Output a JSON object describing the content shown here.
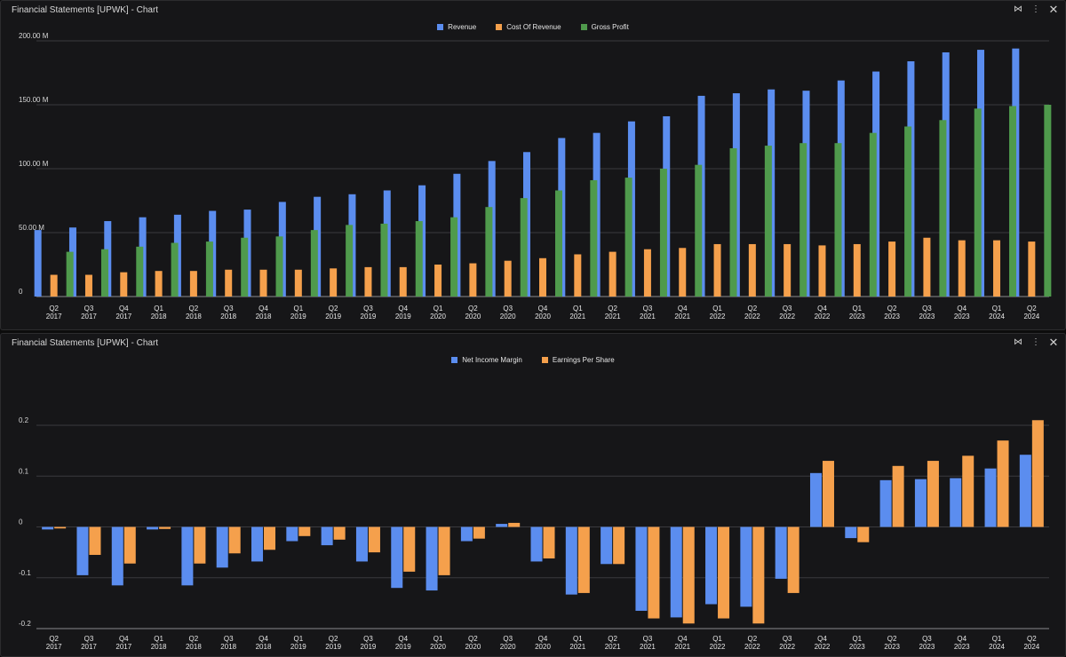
{
  "colors": {
    "revenue": "#5b8def",
    "cost": "#f5a04c",
    "gross": "#4f9a4c",
    "nim": "#5b8def",
    "eps": "#f5a04c"
  },
  "icons": {
    "collapse": "collapse-arrows-icon",
    "menu": "kebab-menu-icon",
    "close": "close-x-icon"
  },
  "panels": [
    {
      "title": "Financial Statements [UPWK] - Chart",
      "legend": [
        "Revenue",
        "Cost Of Revenue",
        "Gross Profit"
      ]
    },
    {
      "title": "Financial Statements [UPWK] - Chart",
      "legend": [
        "Net Income Margin",
        "Earnings Per Share"
      ]
    }
  ],
  "chart_data": [
    {
      "type": "bar",
      "categories": [
        "Q2 2017",
        "Q3 2017",
        "Q4 2017",
        "Q1 2018",
        "Q2 2018",
        "Q3 2018",
        "Q4 2018",
        "Q1 2019",
        "Q2 2019",
        "Q3 2019",
        "Q4 2019",
        "Q1 2020",
        "Q2 2020",
        "Q3 2020",
        "Q4 2020",
        "Q1 2021",
        "Q2 2021",
        "Q3 2021",
        "Q4 2021",
        "Q1 2022",
        "Q2 2022",
        "Q3 2022",
        "Q4 2022",
        "Q1 2023",
        "Q2 2023",
        "Q3 2023",
        "Q4 2023",
        "Q1 2024",
        "Q2 2024"
      ],
      "series": [
        {
          "name": "Revenue",
          "values": [
            52,
            54,
            59,
            62,
            64,
            67,
            68,
            74,
            78,
            80,
            83,
            87,
            96,
            106,
            113,
            124,
            128,
            137,
            141,
            157,
            159,
            162,
            161,
            169,
            176,
            184,
            191,
            193,
            194
          ]
        },
        {
          "name": "Cost Of Revenue",
          "values": [
            17,
            17,
            19,
            20,
            20,
            21,
            21,
            21,
            22,
            23,
            23,
            25,
            26,
            28,
            30,
            33,
            35,
            37,
            38,
            41,
            41,
            41,
            40,
            41,
            43,
            46,
            44,
            44,
            43
          ]
        },
        {
          "name": "Gross Profit",
          "values": [
            35,
            37,
            39,
            42,
            43,
            46,
            47,
            52,
            56,
            57,
            59,
            62,
            70,
            77,
            83,
            91,
            93,
            100,
            103,
            116,
            118,
            120,
            120,
            128,
            133,
            138,
            147,
            149,
            150
          ]
        }
      ],
      "yticks": [
        "0",
        "50.00 M",
        "100.00 M",
        "150.00 M",
        "200.00 M"
      ],
      "ylim": [
        0,
        200
      ],
      "unit": "M",
      "legend": "top-center",
      "grid": true
    },
    {
      "type": "bar",
      "categories": [
        "Q2 2017",
        "Q3 2017",
        "Q4 2017",
        "Q1 2018",
        "Q2 2018",
        "Q3 2018",
        "Q4 2018",
        "Q1 2019",
        "Q2 2019",
        "Q3 2019",
        "Q4 2019",
        "Q1 2020",
        "Q2 2020",
        "Q3 2020",
        "Q4 2020",
        "Q1 2021",
        "Q2 2021",
        "Q3 2021",
        "Q4 2021",
        "Q1 2022",
        "Q2 2022",
        "Q3 2022",
        "Q4 2022",
        "Q1 2023",
        "Q2 2023",
        "Q3 2023",
        "Q4 2023",
        "Q1 2024",
        "Q2 2024"
      ],
      "series": [
        {
          "name": "Net Income Margin",
          "values": [
            -0.005,
            -0.095,
            -0.115,
            -0.005,
            -0.115,
            -0.08,
            -0.068,
            -0.028,
            -0.036,
            -0.068,
            -0.12,
            -0.125,
            -0.028,
            0.006,
            -0.068,
            -0.133,
            -0.073,
            -0.165,
            -0.178,
            -0.152,
            -0.157,
            -0.102,
            0.106,
            -0.022,
            0.092,
            0.094,
            0.096,
            0.115,
            0.142
          ]
        },
        {
          "name": "Earnings Per Share",
          "values": [
            -0.003,
            -0.055,
            -0.072,
            -0.004,
            -0.072,
            -0.052,
            -0.045,
            -0.018,
            -0.025,
            -0.05,
            -0.088,
            -0.095,
            -0.023,
            0.008,
            -0.062,
            -0.13,
            -0.073,
            -0.18,
            -0.19,
            -0.18,
            -0.19,
            -0.13,
            0.13,
            -0.03,
            0.12,
            0.13,
            0.14,
            0.17,
            0.21
          ]
        }
      ],
      "yticks": [
        "-0.2",
        "-0.1",
        "0",
        "0.1",
        "0.2"
      ],
      "ylim": [
        -0.2,
        0.2
      ],
      "legend": "top-center",
      "grid": true
    }
  ]
}
